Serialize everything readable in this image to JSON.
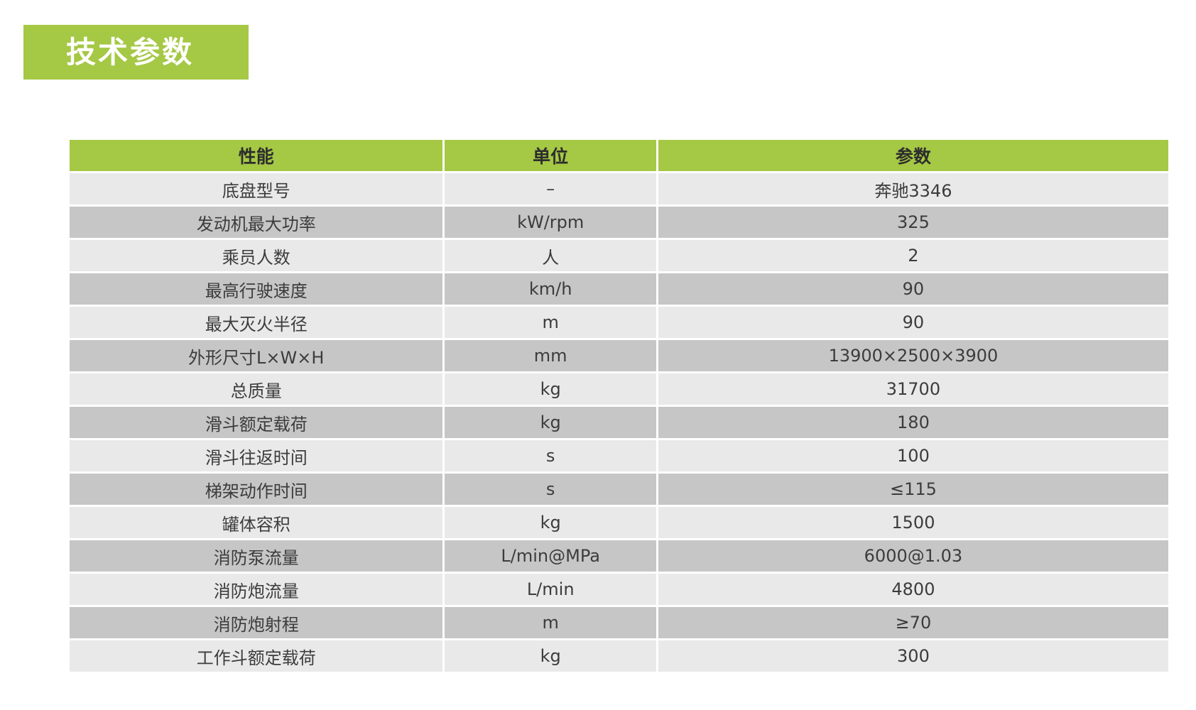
{
  "title": {
    "label": "技术参数"
  },
  "colors": {
    "accent": "#a5c845",
    "row_light": "#e9e9ea",
    "row_dark": "#c6c6c7",
    "text": "#3c3c3c",
    "header_text": "#2d2d2d",
    "title_text": "#ffffff",
    "page_bg": "#ffffff"
  },
  "table": {
    "columns": [
      "性能",
      "单位",
      "参数"
    ],
    "rows": [
      {
        "name": "底盘型号",
        "unit": "–",
        "value": "奔驰3346"
      },
      {
        "name": "发动机最大功率",
        "unit": "kW/rpm",
        "value": "325"
      },
      {
        "name": "乘员人数",
        "unit": "人",
        "value": "2"
      },
      {
        "name": "最高行驶速度",
        "unit": "km/h",
        "value": "90"
      },
      {
        "name": "最大灭火半径",
        "unit": "m",
        "value": "90"
      },
      {
        "name": "外形尺寸L×W×H",
        "unit": "mm",
        "value": "13900×2500×3900"
      },
      {
        "name": "总质量",
        "unit": "kg",
        "value": "31700"
      },
      {
        "name": "滑斗额定载荷",
        "unit": "kg",
        "value": "180"
      },
      {
        "name": "滑斗往返时间",
        "unit": "s",
        "value": "100"
      },
      {
        "name": "梯架动作时间",
        "unit": "s",
        "value": "≤115"
      },
      {
        "name": "罐体容积",
        "unit": "kg",
        "value": "1500"
      },
      {
        "name": "消防泵流量",
        "unit": "L/min@MPa",
        "value": "6000@1.03"
      },
      {
        "name": "消防炮流量",
        "unit": "L/min",
        "value": "4800"
      },
      {
        "name": "消防炮射程",
        "unit": "m",
        "value": "≥70"
      },
      {
        "name": "工作斗额定载荷",
        "unit": "kg",
        "value": "300"
      }
    ]
  },
  "chart_data": {
    "type": "table",
    "title": "技术参数",
    "columns": [
      "性能",
      "单位",
      "参数"
    ],
    "rows": [
      [
        "底盘型号",
        "–",
        "奔驰3346"
      ],
      [
        "发动机最大功率",
        "kW/rpm",
        "325"
      ],
      [
        "乘员人数",
        "人",
        "2"
      ],
      [
        "最高行驶速度",
        "km/h",
        "90"
      ],
      [
        "最大灭火半径",
        "m",
        "90"
      ],
      [
        "外形尺寸L×W×H",
        "mm",
        "13900×2500×3900"
      ],
      [
        "总质量",
        "kg",
        "31700"
      ],
      [
        "滑斗额定载荷",
        "kg",
        "180"
      ],
      [
        "滑斗往返时间",
        "s",
        "100"
      ],
      [
        "梯架动作时间",
        "s",
        "≤115"
      ],
      [
        "罐体容积",
        "kg",
        "1500"
      ],
      [
        "消防泵流量",
        "L/min@MPa",
        "6000@1.03"
      ],
      [
        "消防炮流量",
        "L/min",
        "4800"
      ],
      [
        "消防炮射程",
        "m",
        "≥70"
      ],
      [
        "工作斗额定载荷",
        "kg",
        "300"
      ]
    ]
  }
}
